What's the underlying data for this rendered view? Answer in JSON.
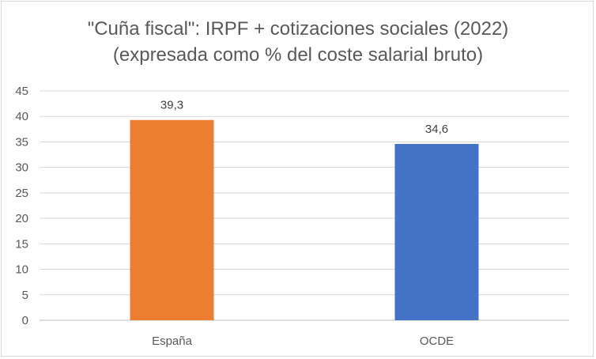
{
  "chart_data": {
    "type": "bar",
    "title_line1": "\"Cuña fiscal\": IRPF + cotizaciones sociales (2022)",
    "title_line2": "(expresada como % del coste salarial bruto)",
    "categories": [
      "España",
      "OCDE"
    ],
    "values": [
      39.3,
      34.6
    ],
    "data_labels": [
      "39,3",
      "34,6"
    ],
    "colors": [
      "#ED7D31",
      "#4472C4"
    ],
    "ylim": [
      0,
      45
    ],
    "yticks": [
      0,
      5,
      10,
      15,
      20,
      25,
      30,
      35,
      40,
      45
    ],
    "grid": true,
    "xlabel": "",
    "ylabel": ""
  }
}
